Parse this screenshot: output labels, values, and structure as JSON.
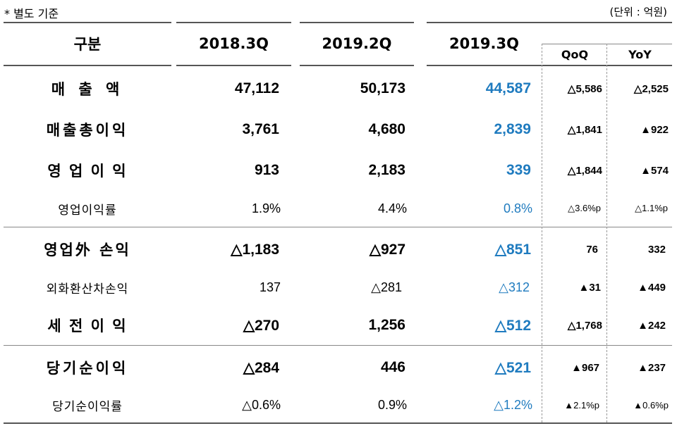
{
  "note": "* 별도 기준",
  "unit": "(단위 : 억원)",
  "headers": {
    "category": "구분",
    "c1": "2018.3Q",
    "c2": "2019.2Q",
    "c3": "2019.3Q",
    "qoq": "QoQ",
    "yoy": "YoY"
  },
  "rows": [
    {
      "label": "매 출 액",
      "v1": "47,112",
      "v2": "50,173",
      "v3": "44,587",
      "qoq": "△5,586",
      "yoy": "△2,525"
    },
    {
      "label": "매출총이익",
      "v1": "3,761",
      "v2": "4,680",
      "v3": "2,839",
      "qoq": "△1,841",
      "yoy": "▲922"
    },
    {
      "label": "영 업 이 익",
      "v1": "913",
      "v2": "2,183",
      "v3": "339",
      "qoq": "△1,844",
      "yoy": "▲574"
    },
    {
      "label": "영업이익률",
      "v1": "1.9%",
      "v2": "4.4%",
      "v3": "0.8%",
      "qoq": "△3.6%p",
      "yoy": "△1.1%p"
    },
    {
      "label": "영업外 손익",
      "v1": "△1,183",
      "v2": "△927",
      "v3": "△851",
      "qoq": "76",
      "yoy": "332"
    },
    {
      "label": "외화환산차손익",
      "v1": "137",
      "v2": "△281",
      "v3": "△312",
      "qoq": "▲31",
      "yoy": "▲449"
    },
    {
      "label": "세 전 이 익",
      "v1": "△270",
      "v2": "1,256",
      "v3": "△512",
      "qoq": "△1,768",
      "yoy": "▲242"
    },
    {
      "label": "당기순이익",
      "v1": "△284",
      "v2": "446",
      "v3": "△521",
      "qoq": "▲967",
      "yoy": "▲237"
    },
    {
      "label": "당기순이익률",
      "v1": "△0.6%",
      "v2": "0.9%",
      "v3": "△1.2%",
      "qoq": "▲2.1%p",
      "yoy": "▲0.6%p"
    }
  ]
}
